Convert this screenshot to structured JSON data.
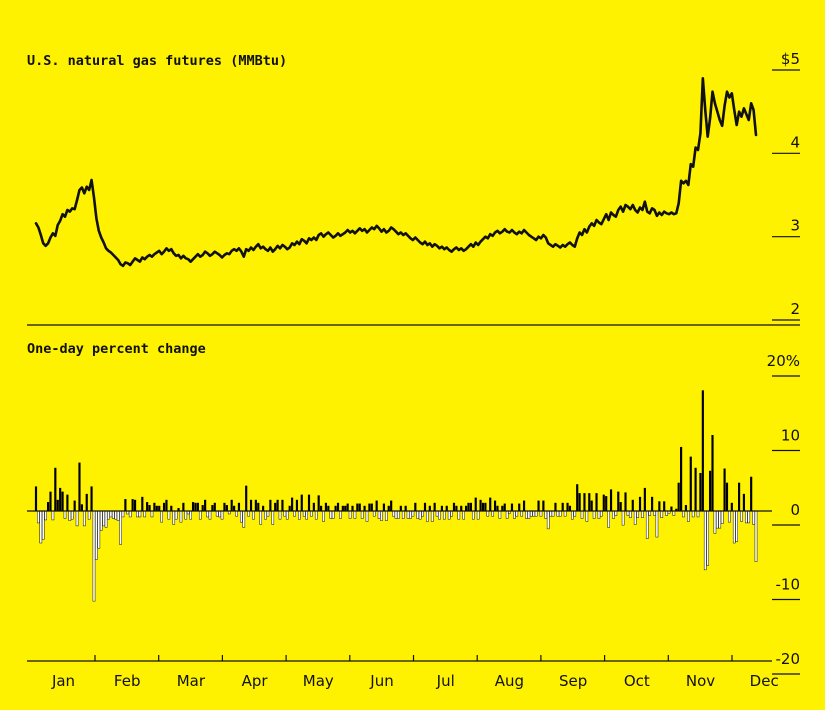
{
  "chart_data": [
    {
      "type": "line",
      "title": "U.S. natural gas futures (MMBtu)",
      "xlabel": "",
      "ylabel": "",
      "ylim": [
        2,
        5
      ],
      "y_ticks": [
        5,
        4,
        3,
        2
      ],
      "y_tick_labels": [
        "$5",
        "4",
        "3",
        "2"
      ],
      "grid": false,
      "series": [
        {
          "values": [
            3.04,
            2.99,
            2.9,
            2.8,
            2.77,
            2.8,
            2.87,
            2.92,
            2.89,
            3.02,
            3.07,
            3.15,
            3.12,
            3.2,
            3.18,
            3.22,
            3.21,
            3.32,
            3.44,
            3.47,
            3.4,
            3.48,
            3.44,
            3.56,
            3.35,
            3.1,
            2.95,
            2.87,
            2.81,
            2.74,
            2.71,
            2.69,
            2.66,
            2.63,
            2.6,
            2.55,
            2.53,
            2.57,
            2.56,
            2.54,
            2.58,
            2.62,
            2.6,
            2.58,
            2.63,
            2.61,
            2.64,
            2.66,
            2.64,
            2.67,
            2.69,
            2.71,
            2.67,
            2.7,
            2.74,
            2.71,
            2.73,
            2.68,
            2.65,
            2.66,
            2.62,
            2.65,
            2.62,
            2.61,
            2.58,
            2.61,
            2.64,
            2.67,
            2.64,
            2.66,
            2.7,
            2.68,
            2.65,
            2.67,
            2.7,
            2.68,
            2.66,
            2.63,
            2.66,
            2.68,
            2.67,
            2.71,
            2.73,
            2.71,
            2.74,
            2.7,
            2.64,
            2.73,
            2.71,
            2.75,
            2.72,
            2.76,
            2.79,
            2.74,
            2.76,
            2.73,
            2.71,
            2.75,
            2.7,
            2.73,
            2.77,
            2.74,
            2.78,
            2.76,
            2.73,
            2.75,
            2.8,
            2.78,
            2.82,
            2.79,
            2.85,
            2.83,
            2.8,
            2.86,
            2.84,
            2.87,
            2.84,
            2.9,
            2.92,
            2.88,
            2.91,
            2.93,
            2.9,
            2.87,
            2.89,
            2.92,
            2.89,
            2.91,
            2.93,
            2.96,
            2.93,
            2.95,
            2.92,
            2.95,
            2.98,
            2.95,
            2.97,
            2.93,
            2.96,
            2.99,
            2.97,
            3.01,
            2.98,
            2.94,
            2.97,
            2.93,
            2.95,
            2.99,
            2.97,
            2.94,
            2.91,
            2.93,
            2.9,
            2.92,
            2.89,
            2.86,
            2.84,
            2.87,
            2.84,
            2.81,
            2.79,
            2.82,
            2.78,
            2.8,
            2.76,
            2.79,
            2.77,
            2.74,
            2.76,
            2.73,
            2.75,
            2.72,
            2.7,
            2.73,
            2.75,
            2.72,
            2.74,
            2.71,
            2.73,
            2.76,
            2.79,
            2.76,
            2.81,
            2.78,
            2.82,
            2.85,
            2.88,
            2.86,
            2.91,
            2.89,
            2.93,
            2.95,
            2.92,
            2.94,
            2.97,
            2.94,
            2.93,
            2.96,
            2.93,
            2.91,
            2.94,
            2.92,
            2.96,
            2.93,
            2.9,
            2.88,
            2.86,
            2.84,
            2.88,
            2.86,
            2.9,
            2.87,
            2.8,
            2.78,
            2.76,
            2.79,
            2.77,
            2.75,
            2.78,
            2.76,
            2.79,
            2.81,
            2.78,
            2.76,
            2.86,
            2.93,
            2.9,
            2.97,
            2.93,
            3.0,
            3.04,
            3.01,
            3.08,
            3.05,
            3.03,
            3.09,
            3.15,
            3.08,
            3.17,
            3.14,
            3.12,
            3.2,
            3.24,
            3.18,
            3.26,
            3.24,
            3.21,
            3.26,
            3.2,
            3.17,
            3.23,
            3.2,
            3.3,
            3.18,
            3.16,
            3.22,
            3.2,
            3.13,
            3.17,
            3.14,
            3.18,
            3.16,
            3.15,
            3.17,
            3.15,
            3.16,
            3.28,
            3.55,
            3.52,
            3.55,
            3.5,
            3.75,
            3.72,
            3.95,
            3.92,
            4.12,
            4.78,
            4.4,
            4.08,
            4.3,
            4.62,
            4.48,
            4.38,
            4.28,
            4.21,
            4.45,
            4.62,
            4.55,
            4.6,
            4.4,
            4.22,
            4.38,
            4.32,
            4.42,
            4.35,
            4.28,
            4.48,
            4.4,
            4.1
          ]
        }
      ]
    },
    {
      "type": "bar",
      "title": "One-day percent change",
      "xlabel": "",
      "ylabel": "",
      "ylim": [
        -20,
        20
      ],
      "y_ticks": [
        20,
        10,
        0,
        -10,
        -20
      ],
      "y_tick_labels": [
        "20%",
        "10",
        "0",
        "-10",
        "-20"
      ],
      "x_tick_labels": [
        "Jan",
        "Feb",
        "Mar",
        "Apr",
        "May",
        "Jun",
        "Jul",
        "Aug",
        "Sep",
        "Oct",
        "Nov",
        "Dec"
      ],
      "colors": {
        "positive": "#000000",
        "negative": "#ffffff"
      },
      "grid": false,
      "series": [
        {
          "values": [
            3.3,
            -1.6,
            -4.3,
            -3.8,
            -1.2,
            1.2,
            2.6,
            -1.2,
            5.8,
            1.5,
            3.1,
            2.6,
            -1.0,
            2.2,
            -1.3,
            -1.1,
            1.4,
            -2.0,
            6.5,
            0.9,
            -2.0,
            2.3,
            -1.1,
            3.3,
            -12.1,
            -6.5,
            -5.0,
            -2.6,
            -2.0,
            -2.2,
            -1.1,
            -0.8,
            -1.0,
            -1.1,
            -1.3,
            -4.5,
            -0.8,
            1.6,
            -0.4,
            -0.8,
            1.6,
            1.5,
            -0.8,
            -0.8,
            1.9,
            -0.8,
            1.2,
            0.8,
            -0.8,
            1.1,
            0.7,
            0.7,
            -1.5,
            1.1,
            1.5,
            -1.1,
            0.7,
            -1.8,
            -1.1,
            0.4,
            -1.5,
            1.1,
            -1.1,
            -0.4,
            -1.1,
            1.2,
            1.1,
            1.1,
            -1.1,
            0.8,
            1.5,
            -0.8,
            -1.1,
            0.8,
            1.1,
            -0.7,
            -0.8,
            -1.1,
            1.1,
            0.8,
            -0.4,
            1.5,
            0.7,
            -0.7,
            1.1,
            -1.5,
            -2.2,
            3.4,
            -0.7,
            1.5,
            -1.1,
            1.5,
            1.1,
            -1.8,
            0.7,
            -1.1,
            -0.7,
            1.5,
            -1.8,
            1.1,
            1.5,
            -1.1,
            1.5,
            -0.7,
            -1.1,
            0.7,
            1.8,
            -0.7,
            1.5,
            -1.1,
            2.2,
            -0.7,
            -1.1,
            2.2,
            -0.7,
            1.1,
            -1.1,
            2.1,
            0.7,
            -1.4,
            1.1,
            0.7,
            -1.0,
            -1.0,
            0.7,
            1.1,
            -1.0,
            0.7,
            0.7,
            1.0,
            -1.0,
            0.7,
            -1.0,
            1.0,
            1.0,
            -1.0,
            0.7,
            -1.4,
            1.0,
            1.0,
            -0.7,
            1.4,
            -1.0,
            -1.3,
            1.0,
            -1.3,
            0.7,
            1.4,
            -0.7,
            -1.0,
            -1.0,
            0.7,
            -1.0,
            0.7,
            -1.0,
            -1.0,
            -0.7,
            1.1,
            -1.0,
            -1.1,
            -0.7,
            1.1,
            -1.4,
            0.7,
            -1.4,
            1.1,
            -0.7,
            -1.1,
            0.7,
            -1.1,
            0.7,
            -1.1,
            -0.7,
            1.1,
            0.7,
            -1.1,
            0.7,
            -1.1,
            0.7,
            1.1,
            1.1,
            -1.1,
            1.8,
            -1.1,
            1.5,
            1.1,
            1.1,
            -0.7,
            1.8,
            -0.7,
            1.4,
            0.7,
            -1.0,
            0.7,
            1.0,
            -1.0,
            -0.3,
            1.0,
            -1.0,
            -0.7,
            1.0,
            -0.7,
            1.4,
            -1.0,
            -1.0,
            -0.7,
            -0.7,
            -0.7,
            1.4,
            -0.7,
            1.4,
            -1.0,
            -2.4,
            -0.7,
            -0.7,
            1.1,
            -0.7,
            -0.7,
            1.1,
            -0.7,
            1.1,
            0.7,
            -1.1,
            -0.7,
            3.6,
            2.4,
            -1.0,
            2.4,
            -1.4,
            2.4,
            1.4,
            -1.0,
            2.4,
            -1.0,
            -0.7,
            2.2,
            2.0,
            -2.2,
            2.9,
            -1.0,
            -0.6,
            2.6,
            1.2,
            -1.9,
            2.5,
            -0.6,
            -0.9,
            1.5,
            -1.8,
            -0.9,
            1.9,
            -0.9,
            3.1,
            -3.7,
            -0.6,
            1.9,
            -0.6,
            -3.5,
            1.3,
            -0.9,
            1.3,
            -0.6,
            -0.3,
            0.6,
            -0.6,
            0.3,
            3.8,
            8.6,
            -0.8,
            0.8,
            -1.4,
            7.3,
            -0.8,
            5.8,
            -0.8,
            5.1,
            16.2,
            -7.9,
            -7.3,
            5.4,
            10.2,
            -3.0,
            -2.3,
            -2.3,
            -1.7,
            5.7,
            3.8,
            -1.5,
            1.1,
            -4.3,
            -4.1,
            3.8,
            -1.4,
            2.3,
            -1.6,
            -1.6,
            4.6,
            -1.8,
            -6.8
          ]
        }
      ]
    }
  ]
}
